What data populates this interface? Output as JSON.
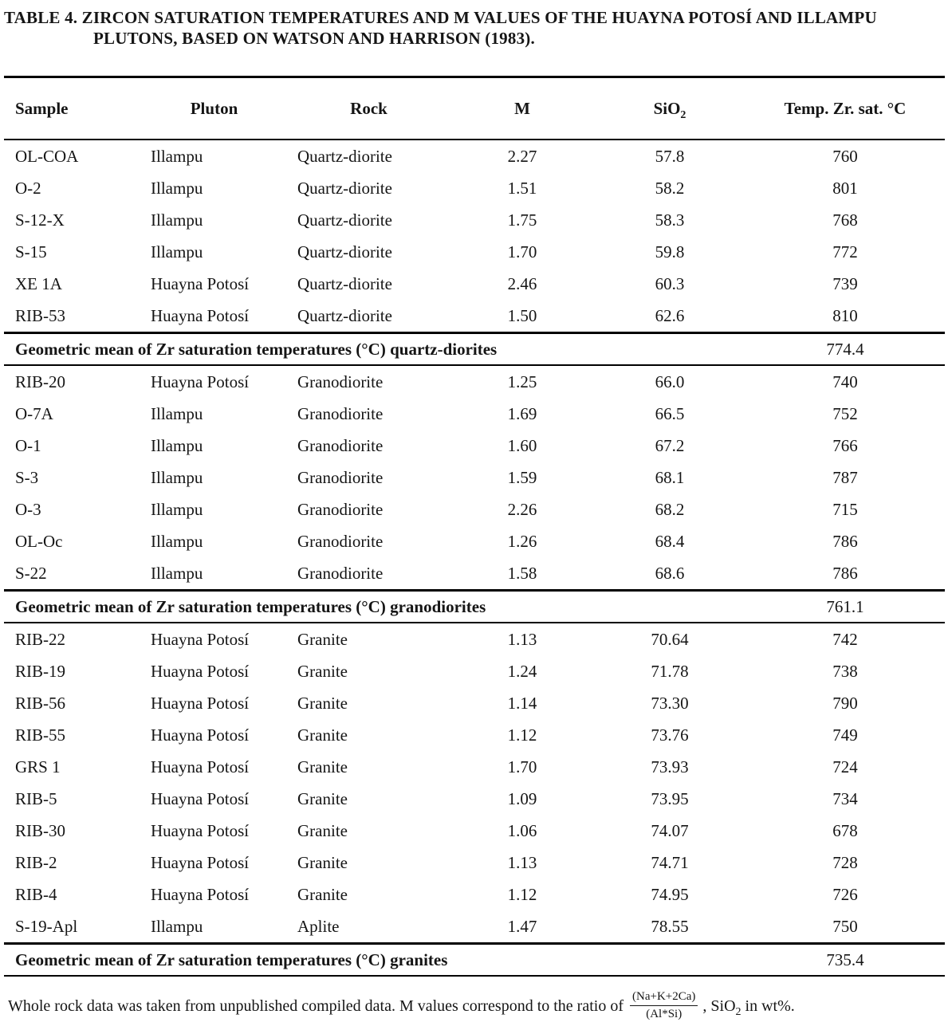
{
  "title": {
    "line1": "TABLE 4. ZIRCON SATURATION TEMPERATURES AND M VALUES OF THE HUAYNA POTOSÍ AND ILLAMPU",
    "line2": "PLUTONS, BASED ON WATSON AND HARRISON (1983)."
  },
  "table": {
    "columns": [
      {
        "key": "sample",
        "label": "Sample"
      },
      {
        "key": "pluton",
        "label": "Pluton"
      },
      {
        "key": "rock",
        "label": "Rock"
      },
      {
        "key": "m",
        "label": "M"
      },
      {
        "key": "sio2",
        "label": "SiO",
        "sub": "2"
      },
      {
        "key": "temp",
        "label": "Temp. Zr. sat. °C"
      }
    ],
    "sections": [
      {
        "rows": [
          [
            "OL-COA",
            "Illampu",
            "Quartz-diorite",
            "2.27",
            "57.8",
            "760"
          ],
          [
            "O-2",
            "Illampu",
            "Quartz-diorite",
            "1.51",
            "58.2",
            "801"
          ],
          [
            "S-12-X",
            "Illampu",
            "Quartz-diorite",
            "1.75",
            "58.3",
            "768"
          ],
          [
            "S-15",
            "Illampu",
            "Quartz-diorite",
            "1.70",
            "59.8",
            "772"
          ],
          [
            "XE 1A",
            "Huayna Potosí",
            "Quartz-diorite",
            "2.46",
            "60.3",
            "739"
          ],
          [
            "RIB-53",
            "Huayna Potosí",
            "Quartz-diorite",
            "1.50",
            "62.6",
            "810"
          ]
        ],
        "mean": {
          "label": "Geometric mean of Zr saturation temperatures (°C) quartz-diorites",
          "value": "774.4"
        }
      },
      {
        "rows": [
          [
            "RIB-20",
            "Huayna Potosí",
            "Granodiorite",
            "1.25",
            "66.0",
            "740"
          ],
          [
            "O-7A",
            "Illampu",
            "Granodiorite",
            "1.69",
            "66.5",
            "752"
          ],
          [
            "O-1",
            "Illampu",
            "Granodiorite",
            "1.60",
            "67.2",
            "766"
          ],
          [
            "S-3",
            "Illampu",
            "Granodiorite",
            "1.59",
            "68.1",
            "787"
          ],
          [
            "O-3",
            "Illampu",
            "Granodiorite",
            "2.26",
            "68.2",
            "715"
          ],
          [
            "OL-Oc",
            "Illampu",
            "Granodiorite",
            "1.26",
            "68.4",
            "786"
          ],
          [
            "S-22",
            "Illampu",
            "Granodiorite",
            "1.58",
            "68.6",
            "786"
          ]
        ],
        "mean": {
          "label": "Geometric mean of Zr saturation temperatures (°C) granodiorites",
          "value": "761.1"
        }
      },
      {
        "rows": [
          [
            "RIB-22",
            "Huayna Potosí",
            "Granite",
            "1.13",
            "70.64",
            "742"
          ],
          [
            "RIB-19",
            "Huayna Potosí",
            "Granite",
            "1.24",
            "71.78",
            "738"
          ],
          [
            "RIB-56",
            "Huayna Potosí",
            "Granite",
            "1.14",
            "73.30",
            "790"
          ],
          [
            "RIB-55",
            "Huayna Potosí",
            "Granite",
            "1.12",
            "73.76",
            "749"
          ],
          [
            "GRS 1",
            "Huayna Potosí",
            "Granite",
            "1.70",
            "73.93",
            "724"
          ],
          [
            "RIB-5",
            "Huayna Potosí",
            "Granite",
            "1.09",
            "73.95",
            "734"
          ],
          [
            "RIB-30",
            "Huayna Potosí",
            "Granite",
            "1.06",
            "74.07",
            "678"
          ],
          [
            "RIB-2",
            "Huayna Potosí",
            "Granite",
            "1.13",
            "74.71",
            "728"
          ],
          [
            "RIB-4",
            "Huayna Potosí",
            "Granite",
            "1.12",
            "74.95",
            "726"
          ],
          [
            "S-19-Apl",
            "Illampu",
            "Aplite",
            "1.47",
            "78.55",
            "750"
          ]
        ],
        "mean": {
          "label": "Geometric mean of Zr saturation temperatures (°C) granites",
          "value": "735.4"
        }
      }
    ]
  },
  "footnote": {
    "text_before": "Whole rock data was taken from unpublished compiled data. M values correspond to the ratio of",
    "fraction_numerator": "(Na+K+2Ca)",
    "fraction_denominator": "(Al*Si)",
    "text_mid": ", SiO",
    "text_mid_sub": "2",
    "text_after": " in wt%."
  },
  "colors": {
    "background": "#ffffff",
    "text": "#151515",
    "rule": "#000000"
  }
}
